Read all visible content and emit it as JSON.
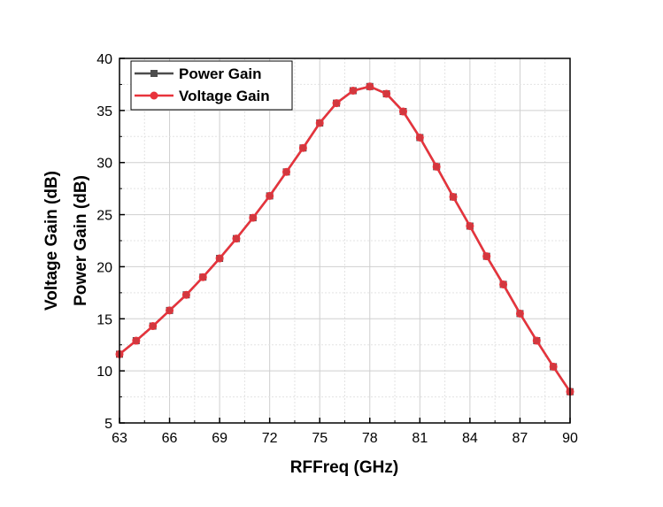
{
  "chart_data": {
    "type": "line",
    "title": "",
    "xlabel": "RFFreq (GHz)",
    "ylabels": [
      "Voltage Gain (dB)",
      "Power Gain (dB)"
    ],
    "xlim": [
      63,
      90
    ],
    "ylim": [
      5,
      40
    ],
    "xticks": [
      63,
      66,
      69,
      72,
      75,
      78,
      81,
      84,
      87,
      90
    ],
    "yticks": [
      5,
      10,
      15,
      20,
      25,
      30,
      35,
      40
    ],
    "grid": true,
    "legend_position": "top-left",
    "x": [
      63,
      64,
      65,
      66,
      67,
      68,
      69,
      70,
      71,
      72,
      73,
      74,
      75,
      76,
      77,
      78,
      79,
      80,
      81,
      82,
      83,
      84,
      85,
      86,
      87,
      88,
      89,
      90
    ],
    "series": [
      {
        "name": "Power Gain",
        "color": "#4d4d4d",
        "marker": "square",
        "values": [
          11.6,
          12.9,
          14.3,
          15.8,
          17.3,
          19.0,
          20.8,
          22.7,
          24.7,
          26.8,
          29.1,
          31.4,
          33.8,
          35.7,
          36.9,
          37.3,
          36.6,
          34.9,
          32.4,
          29.6,
          26.7,
          23.9,
          21.0,
          18.3,
          15.5,
          12.9,
          10.4,
          8.0
        ]
      },
      {
        "name": "Voltage Gain",
        "color": "#e8333c",
        "marker": "circle",
        "values": [
          11.6,
          12.9,
          14.3,
          15.8,
          17.3,
          19.0,
          20.8,
          22.7,
          24.7,
          26.8,
          29.1,
          31.4,
          33.8,
          35.7,
          36.9,
          37.3,
          36.6,
          34.9,
          32.4,
          29.6,
          26.7,
          23.9,
          21.0,
          18.3,
          15.5,
          12.9,
          10.4,
          8.0
        ]
      }
    ]
  }
}
